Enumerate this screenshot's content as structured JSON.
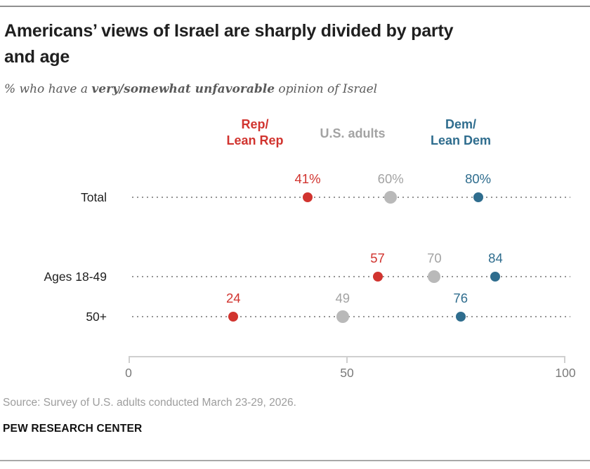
{
  "header": {
    "title": "Americans’ views of Israel are sharply divided by party and age",
    "title_lines": [
      "Americans’ views of Israel are sharply divided by party",
      "and age"
    ],
    "subtitle_prefix": "% who have a ",
    "subtitle_bold": "very/somewhat unfavorable",
    "subtitle_suffix": " opinion of Israel"
  },
  "chart_data": {
    "type": "scatter",
    "variant": "dot-plot",
    "title": "Americans’ views of Israel are sharply divided by party and age",
    "subtitle": "% who have a very/somewhat unfavorable opinion of Israel",
    "categories": [
      "Total",
      "Ages 18-49",
      "50+"
    ],
    "series": [
      {
        "name": "Rep/Lean Rep",
        "dot_color": "#d1342f",
        "label_color": "#d1342f",
        "values": [
          41,
          57,
          24
        ],
        "point_labels": [
          "41%",
          "57",
          "24"
        ]
      },
      {
        "name": "U.S. adults",
        "dot_color": "#b9b9b9",
        "label_color": "#a3a3a3",
        "values": [
          60,
          70,
          49
        ],
        "point_labels": [
          "60%",
          "70",
          "49"
        ]
      },
      {
        "name": "Dem/Lean Dem",
        "dot_color": "#2f6d8e",
        "label_color": "#2f6d8e",
        "values": [
          80,
          84,
          76
        ],
        "point_labels": [
          "80%",
          "84",
          "76"
        ]
      }
    ],
    "legend": [
      {
        "lines": [
          "Rep/",
          "Lean Rep"
        ],
        "color": "#d1342f"
      },
      {
        "lines": [
          "U.S. adults"
        ],
        "color": "#a3a3a3"
      },
      {
        "lines": [
          "Dem/",
          "Lean Dem"
        ],
        "color": "#2f6d8e"
      }
    ],
    "legend_position": "top",
    "grid": "dotted-row-leaders",
    "xaxis": {
      "range": [
        0,
        100
      ],
      "ticks": [
        0,
        50,
        100
      ],
      "tick_labels": [
        "0",
        "50",
        "100"
      ]
    }
  },
  "footer": {
    "source": "Source: Survey of U.S. adults conducted March 23-29, 2026.",
    "brand": "PEW RESEARCH CENTER"
  }
}
